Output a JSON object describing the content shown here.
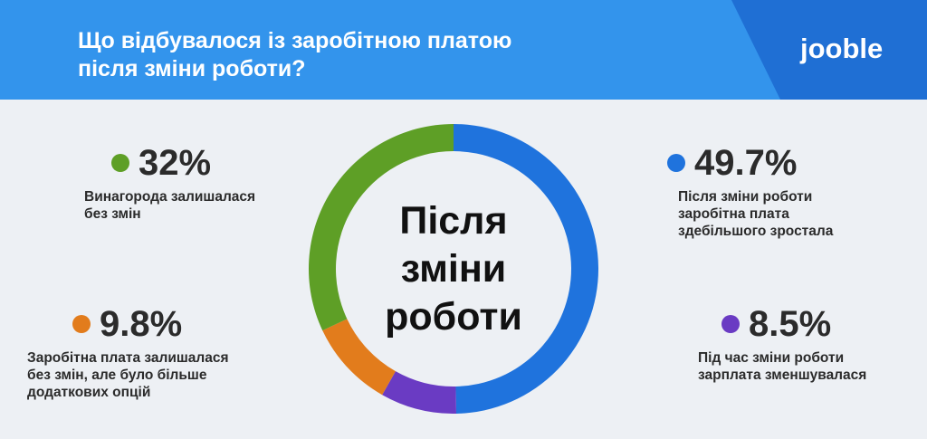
{
  "header": {
    "title_line1": "Що відбувалося із заробітною платою",
    "title_line2": "після зміни роботи?",
    "logo": "jooble"
  },
  "colors": {
    "header_bg": "#3394ec",
    "header_dark": "#1f6fd4",
    "page_bg": "#edf0f4",
    "blue": "#1f73dd",
    "green": "#5e9f26",
    "orange": "#e27c1c",
    "purple": "#6a3bc3"
  },
  "chart_data": {
    "type": "pie",
    "donut": true,
    "center_label": [
      "Після",
      "зміни",
      "роботи"
    ],
    "slices": [
      {
        "label": "Після зміни роботи заробітна плата здебільшого зростала",
        "value": 49.7,
        "value_text": "49.7%",
        "color": "#1f73dd"
      },
      {
        "label": "Під час зміни роботи зарплата зменшувалася",
        "value": 8.5,
        "value_text": "8.5%",
        "color": "#6a3bc3"
      },
      {
        "label": "Заробітна плата залишалася без змін, але було більше додаткових опцій",
        "value": 9.8,
        "value_text": "9.8%",
        "color": "#e27c1c"
      },
      {
        "label": "Винагорода залишалася без змін",
        "value": 32,
        "value_text": "32%",
        "color": "#5e9f26"
      }
    ]
  },
  "stats": {
    "top_left": {
      "value": "32%",
      "desc": [
        "Винагорода залишалася",
        "без змін"
      ]
    },
    "bottom_left": {
      "value": "9.8%",
      "desc": [
        "Заробітна плата залишалася",
        "без змін, але було більше",
        "додаткових опцій"
      ]
    },
    "top_right": {
      "value": "49.7%",
      "desc": [
        "Після зміни роботи",
        "заробітна плата",
        "здебільшого зростала"
      ]
    },
    "bottom_right": {
      "value": "8.5%",
      "desc": [
        "Під час зміни роботи",
        "зарплата зменшувалася"
      ]
    }
  }
}
